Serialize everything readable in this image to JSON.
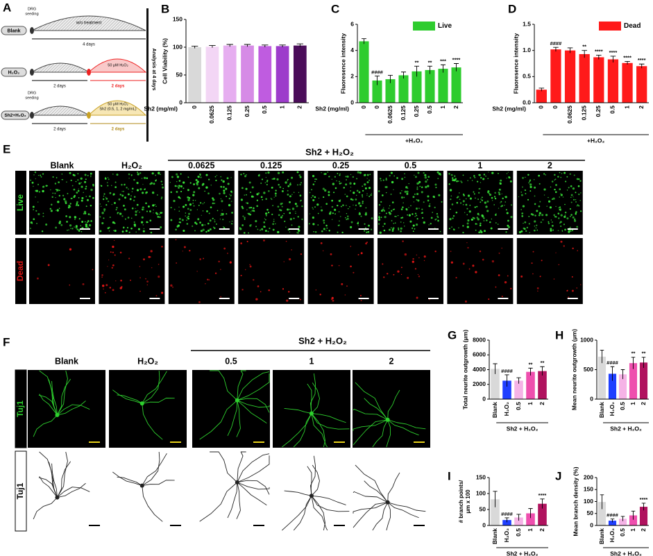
{
  "diagram": {
    "letter": "A",
    "analysis": "Analysis at 4 days",
    "rows": [
      {
        "label": "Blank",
        "seeding": [
          "DRG",
          "seeding"
        ],
        "treatment": [
          "w/o treatment"
        ],
        "durations": [
          "4 days"
        ]
      },
      {
        "label": "H₂O₂",
        "treatment": [
          "50 μM H₂O₂"
        ],
        "durations": [
          "2 days",
          "2 days"
        ]
      },
      {
        "label": "Sh2+H₂O₂",
        "seeding": [
          "DRG",
          "seeding"
        ],
        "treatment": [
          "50 μM H₂O₂",
          "Sh2 (0.5, 1, 2 mg/mL)"
        ],
        "durations": [
          "2 days",
          "2 days"
        ]
      }
    ]
  },
  "live_dead_images": {
    "letter": "E",
    "header": "Sh2 + H₂O₂",
    "columns": [
      "Blank",
      "H₂O₂",
      "0.0625",
      "0.125",
      "0.25",
      "0.5",
      "1",
      "2"
    ],
    "rows": [
      "Live",
      "Dead"
    ]
  },
  "neurite_images": {
    "letter": "F",
    "header": "Sh2 + H₂O₂",
    "columns": [
      "Blank",
      "H₂O₂",
      "0.5",
      "1",
      "2"
    ],
    "rows": [
      "Tuj1",
      "Tuj1"
    ]
  },
  "chart_data": [
    {
      "type": "bar",
      "panel": "B",
      "ylabel": "Cell Viability (%)",
      "xlabel": "Sh2 (mg/ml)",
      "categories": [
        "0",
        "0.0625",
        "0.125",
        "0.25",
        "0.5",
        "1",
        "2"
      ],
      "values": [
        100,
        101,
        103,
        103,
        102,
        102,
        103
      ],
      "errors": [
        2,
        2,
        2,
        2,
        2,
        2,
        3
      ],
      "colors": [
        "#d9d9d9",
        "#f3d6f5",
        "#e6aef0",
        "#d68be6",
        "#bf5ce0",
        "#9d3ccb",
        "#4b0d5a"
      ],
      "ylim": [
        0,
        150
      ],
      "yticks": [
        0,
        50,
        100,
        150
      ]
    },
    {
      "type": "bar",
      "panel": "C",
      "ylabel": "Fluoresence intensity",
      "xlabel": "Sh2 (mg/ml)",
      "categories": [
        "0",
        "0",
        "0.0625",
        "0.125",
        "0.25",
        "0.5",
        "1",
        "2"
      ],
      "values": [
        4.7,
        1.7,
        1.8,
        2.1,
        2.4,
        2.5,
        2.6,
        2.7
      ],
      "errors": [
        0.2,
        0.35,
        0.3,
        0.25,
        0.4,
        0.3,
        0.3,
        0.3
      ],
      "colors": [
        "#2ecc2e",
        "#2ecc2e",
        "#2ecc2e",
        "#2ecc2e",
        "#2ecc2e",
        "#2ecc2e",
        "#2ecc2e",
        "#2ecc2e"
      ],
      "significance": [
        null,
        "####",
        null,
        null,
        "**",
        "**",
        "***",
        "****"
      ],
      "group_label": "+H₂O₂",
      "legend": {
        "name": "Live",
        "color": "#2ecc2e"
      },
      "ylim": [
        0,
        6
      ],
      "yticks": [
        0,
        2,
        4,
        6
      ]
    },
    {
      "type": "bar",
      "panel": "D",
      "ylabel": "Fluoresence intensity",
      "xlabel": "Sh2 (mg/ml)",
      "categories": [
        "0",
        "0",
        "0.0625",
        "0.125",
        "0.25",
        "0.5",
        "1",
        "2"
      ],
      "values": [
        0.25,
        1.02,
        1.0,
        0.93,
        0.87,
        0.83,
        0.76,
        0.7
      ],
      "errors": [
        0.03,
        0.04,
        0.05,
        0.07,
        0.04,
        0.06,
        0.03,
        0.04
      ],
      "colors": [
        "#ff1a1a",
        "#ff1a1a",
        "#ff1a1a",
        "#ff1a1a",
        "#ff1a1a",
        "#ff1a1a",
        "#ff1a1a",
        "#ff1a1a"
      ],
      "significance": [
        null,
        "####",
        null,
        "**",
        "****",
        "****",
        "****",
        "****"
      ],
      "group_label": "+H₂O₂",
      "legend": {
        "name": "Dead",
        "color": "#ff1a1a"
      },
      "ylim": [
        0,
        1.5
      ],
      "yticks": [
        {
          "value": 0,
          "label": "0.0"
        },
        {
          "value": 0.5,
          "label": "0.5"
        },
        {
          "value": 1,
          "label": "1.0"
        },
        {
          "value": 1.5,
          "label": "1.5"
        }
      ]
    },
    {
      "type": "bar",
      "panel": "G",
      "ylabel": "Total neurite outgrowth (μm)",
      "categories": [
        "Blank",
        "H₂O₂",
        "0.5",
        "1",
        "2"
      ],
      "values": [
        4100,
        2500,
        2500,
        3700,
        3800
      ],
      "errors": [
        700,
        800,
        400,
        500,
        600
      ],
      "colors": [
        "#d9d9d9",
        "#1f3fff",
        "#f5b3e6",
        "#ee4fae",
        "#b0125e"
      ],
      "significance": [
        null,
        "####",
        null,
        "**",
        "**"
      ],
      "group_label": "Sh2 + H₂O₂",
      "ylim": [
        0,
        8000
      ],
      "yticks": [
        0,
        2000,
        4000,
        6000,
        8000
      ]
    },
    {
      "type": "bar",
      "panel": "H",
      "ylabel": "Mean neurite outgrowth (μm)",
      "categories": [
        "Blank",
        "H₂O₂",
        "0.5",
        "1",
        "2"
      ],
      "values": [
        720,
        430,
        420,
        610,
        620
      ],
      "errors": [
        110,
        120,
        80,
        100,
        90
      ],
      "colors": [
        "#d9d9d9",
        "#1f3fff",
        "#f5b3e6",
        "#ee4fae",
        "#b0125e"
      ],
      "significance": [
        null,
        "####",
        null,
        "**",
        "**"
      ],
      "group_label": "Sh2 + H₂O₂",
      "ylim": [
        0,
        1000
      ],
      "yticks": [
        0,
        500,
        1000
      ]
    },
    {
      "type": "bar",
      "panel": "I",
      "ylabel": [
        "# branch points/",
        "μm x 100"
      ],
      "categories": [
        "Blank",
        "H₂O₂",
        "0.5",
        "1",
        "2"
      ],
      "values": [
        82,
        17,
        25,
        38,
        68
      ],
      "errors": [
        25,
        7,
        10,
        15,
        15
      ],
      "colors": [
        "#d9d9d9",
        "#1f3fff",
        "#f5b3e6",
        "#ee4fae",
        "#b0125e"
      ],
      "significance": [
        null,
        "####",
        null,
        null,
        "****"
      ],
      "group_label": "Sh2 + H₂O₂",
      "ylim": [
        0,
        150
      ],
      "yticks": [
        0,
        50,
        100,
        150
      ]
    },
    {
      "type": "bar",
      "panel": "J",
      "ylabel": "Mean branch density (%)",
      "categories": [
        "Blank",
        "H₂O₂",
        "0.5",
        "1",
        "2"
      ],
      "values": [
        98,
        20,
        28,
        42,
        78
      ],
      "errors": [
        30,
        7,
        10,
        18,
        15
      ],
      "colors": [
        "#d9d9d9",
        "#1f3fff",
        "#f5b3e6",
        "#ee4fae",
        "#b0125e"
      ],
      "significance": [
        null,
        "####",
        null,
        null,
        "****"
      ],
      "group_label": "Sh2 + H₂O₂",
      "ylim": [
        0,
        200
      ],
      "yticks": [
        0,
        50,
        100,
        150,
        200
      ]
    }
  ]
}
